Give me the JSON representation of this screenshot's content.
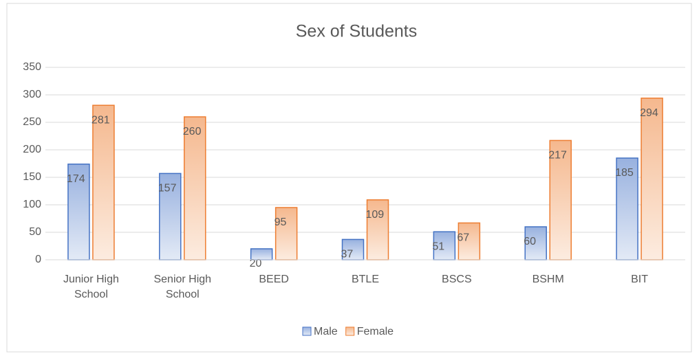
{
  "chart_data": {
    "type": "bar",
    "title": "Sex of Students",
    "categories": [
      "Junior High School",
      "Senior High School",
      "BEED",
      "BTLE",
      "BSCS",
      "BSHM",
      "BIT"
    ],
    "series": [
      {
        "name": "Male",
        "color": "#4472c4",
        "values": [
          174,
          157,
          20,
          37,
          51,
          60,
          185
        ]
      },
      {
        "name": "Female",
        "color": "#ed7d31",
        "values": [
          281,
          260,
          95,
          109,
          67,
          217,
          294
        ]
      }
    ],
    "ylim": [
      0,
      350
    ],
    "yticks": [
      0,
      50,
      100,
      150,
      200,
      250,
      300,
      350
    ],
    "grid": true,
    "legend": "bottom"
  }
}
